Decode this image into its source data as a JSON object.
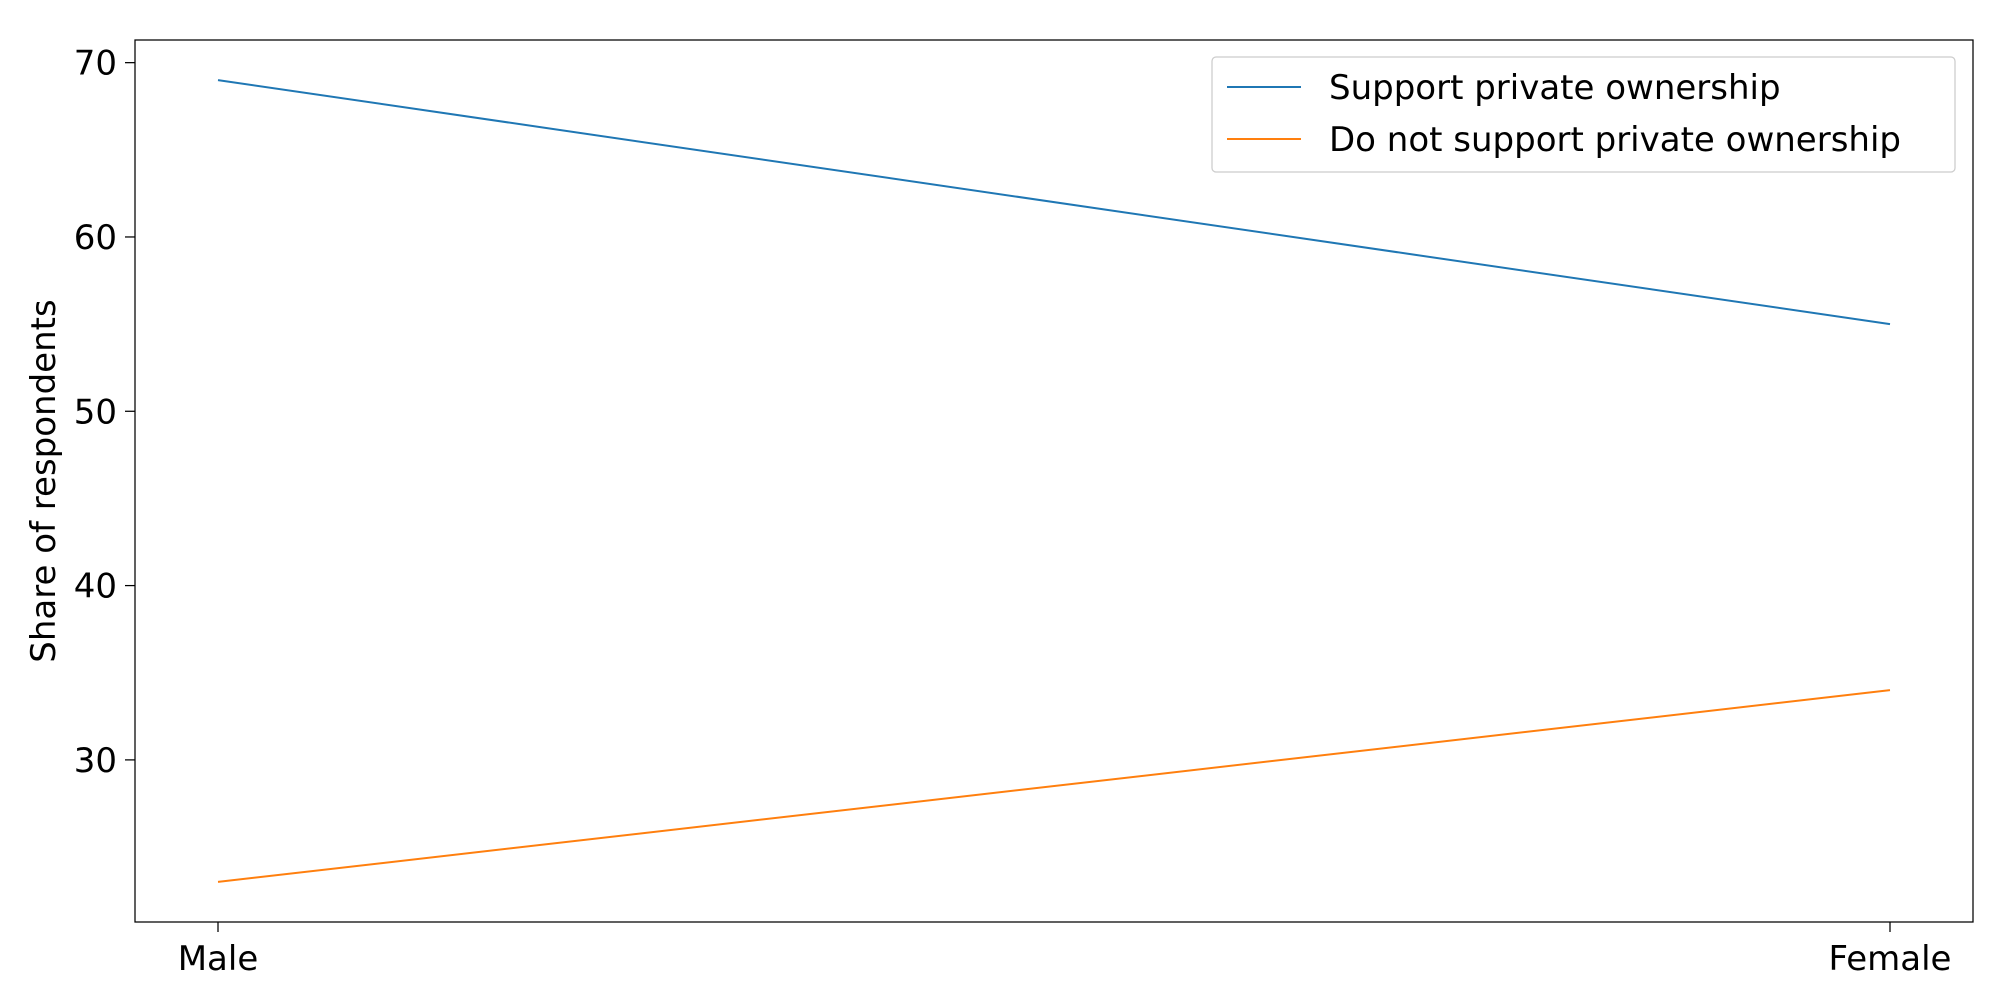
{
  "chart_data": {
    "type": "line",
    "title": "",
    "xlabel": "",
    "ylabel": "Share of respondents",
    "categories": [
      "Male",
      "Female"
    ],
    "yticks": [
      30,
      40,
      50,
      60,
      70
    ],
    "ylim": [
      20.7,
      71.3
    ],
    "grid": false,
    "legend_position": "top-right",
    "series": [
      {
        "name": "Support private ownership",
        "color": "#1f77b4",
        "values": [
          69,
          55
        ]
      },
      {
        "name": "Do not support private ownership",
        "color": "#ff7f0e",
        "values": [
          23,
          34
        ]
      }
    ]
  }
}
